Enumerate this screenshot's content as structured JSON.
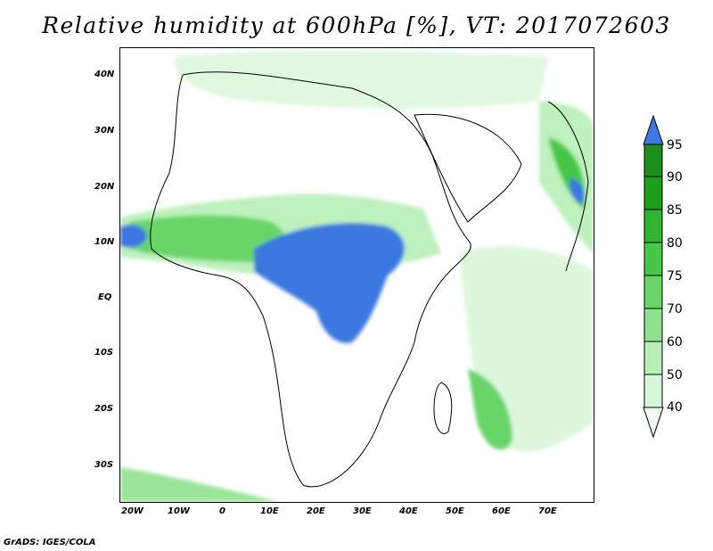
{
  "title": "Relative humidity at 600hPa [%], VT: 2017072603",
  "footer": "GrADS: IGES/COLA",
  "y_ticks": [
    "40N",
    "30N",
    "20N",
    "10N",
    "EQ",
    "10S",
    "20S",
    "30S"
  ],
  "x_ticks": [
    "20W",
    "10W",
    "0",
    "10E",
    "20E",
    "30E",
    "40E",
    "50E",
    "60E",
    "70E"
  ],
  "colorbar": {
    "labels": [
      "95",
      "90",
      "85",
      "80",
      "75",
      "70",
      "60",
      "50",
      "40"
    ],
    "colors": [
      "#f0fcf0",
      "#d8f6d8",
      "#b6efb6",
      "#8fe28f",
      "#69d569",
      "#46c746",
      "#2eb42e",
      "#1b9f1b",
      "#1b8f1b",
      "#3a78e0"
    ]
  },
  "colors": {
    "ocean": "#ffffff",
    "land_border": "#000000",
    "humid_core": "#3a78e0",
    "humid_green": "#46c746"
  }
}
